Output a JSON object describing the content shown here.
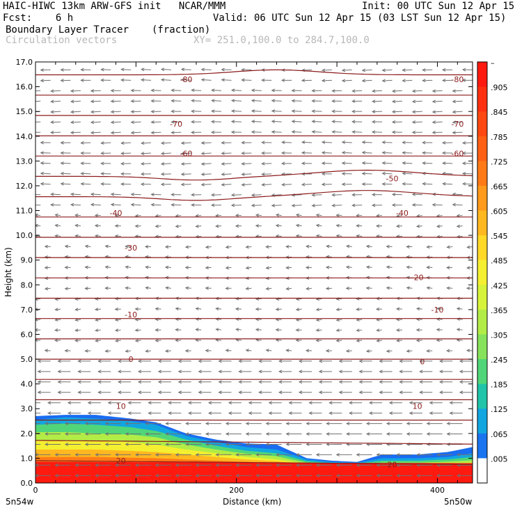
{
  "header": {
    "model_line": "HAIC-HIWC 13km ARW-GFS init   NCAR/MMM",
    "init": "Init: 00 UTC Sun 12 Apr 15",
    "fcst": "Fcst:    6 h",
    "valid": "Valid: 06 UTC Sun 12 Apr 15 (03 LST Sun 12 Apr 15)",
    "field": "Boundary Layer Tracer",
    "field_units": "(fraction)",
    "vectors": "Circulation vectors",
    "xsec": "XY= 251.0,100.0 to 284.7,100.0"
  },
  "axes": {
    "ylabel": "Height (km)",
    "xlabel": "Distance (km)",
    "x_start": "5n54w",
    "x_end": "5n50w"
  },
  "colors": {
    "contour": "#8b1a1a",
    "vector": "#707070"
  },
  "chart_data": {
    "type": "heatmap",
    "x_unit": "km",
    "y_unit": "km",
    "xlim": [
      0,
      435
    ],
    "ylim": [
      0,
      17
    ],
    "x_ticks": [
      "0",
      "200",
      "400"
    ],
    "x_tick_values": [
      0,
      200,
      400
    ],
    "y_ticks": [
      "0.0",
      "1.0",
      "2.0",
      "3.0",
      "4.0",
      "5.0",
      "6.0",
      "7.0",
      "8.0",
      "9.0",
      "10.0",
      "11.0",
      "12.0",
      "13.0",
      "14.0",
      "15.0",
      "16.0",
      "17.0"
    ],
    "colorbar": {
      "labels": [
        "–",
        ".905",
        ".845",
        ".785",
        ".725",
        ".665",
        ".605",
        ".545",
        ".485",
        ".425",
        ".365",
        ".305",
        ".245",
        ".185",
        ".125",
        ".065",
        ".005"
      ],
      "colors": [
        "#ff1a10",
        "#ff3010",
        "#ff4812",
        "#ff6014",
        "#ff7a16",
        "#ff9a1c",
        "#ffb820",
        "#ffd828",
        "#f4ef30",
        "#d6f23a",
        "#b2ec46",
        "#86e25a",
        "#50d678",
        "#20c4a8",
        "#12a6e0",
        "#1a74f0",
        "#ffffff"
      ]
    },
    "tracer_layers": [
      {
        "level": 0.005,
        "color": "#1a6cf0",
        "top": [
          [
            0,
            2.7
          ],
          [
            30,
            2.75
          ],
          [
            60,
            2.75
          ],
          [
            95,
            2.6
          ],
          [
            120,
            2.45
          ],
          [
            150,
            2.0
          ],
          [
            180,
            1.75
          ],
          [
            210,
            1.6
          ],
          [
            240,
            1.55
          ],
          [
            270,
            1.0
          ],
          [
            295,
            0.9
          ],
          [
            320,
            0.85
          ],
          [
            345,
            1.15
          ],
          [
            380,
            1.15
          ],
          [
            410,
            1.25
          ],
          [
            435,
            1.45
          ]
        ]
      },
      {
        "level": 0.125,
        "color": "#12a6e0",
        "top": [
          [
            0,
            2.55
          ],
          [
            30,
            2.65
          ],
          [
            60,
            2.6
          ],
          [
            95,
            2.5
          ],
          [
            120,
            2.35
          ],
          [
            150,
            1.9
          ],
          [
            180,
            1.65
          ],
          [
            210,
            1.45
          ],
          [
            240,
            1.35
          ],
          [
            270,
            0.95
          ],
          [
            295,
            0.85
          ],
          [
            320,
            0.82
          ],
          [
            345,
            1.0
          ],
          [
            380,
            1.0
          ],
          [
            410,
            1.05
          ],
          [
            435,
            1.2
          ]
        ]
      },
      {
        "level": 0.245,
        "color": "#50d678",
        "top": [
          [
            0,
            2.35
          ],
          [
            30,
            2.4
          ],
          [
            60,
            2.35
          ],
          [
            95,
            2.25
          ],
          [
            120,
            2.1
          ],
          [
            150,
            1.75
          ],
          [
            180,
            1.5
          ],
          [
            210,
            1.3
          ],
          [
            240,
            1.2
          ],
          [
            270,
            0.88
          ],
          [
            295,
            0.8
          ],
          [
            320,
            0.78
          ],
          [
            345,
            0.9
          ],
          [
            380,
            0.9
          ],
          [
            410,
            0.95
          ],
          [
            435,
            1.05
          ]
        ]
      },
      {
        "level": 0.365,
        "color": "#b2ec46",
        "top": [
          [
            0,
            2.05
          ],
          [
            30,
            2.05
          ],
          [
            60,
            2.0
          ],
          [
            95,
            1.95
          ],
          [
            120,
            1.85
          ],
          [
            150,
            1.55
          ],
          [
            180,
            1.35
          ],
          [
            210,
            1.18
          ],
          [
            240,
            1.08
          ],
          [
            270,
            0.82
          ],
          [
            295,
            0.76
          ],
          [
            320,
            0.74
          ],
          [
            345,
            0.82
          ],
          [
            380,
            0.82
          ],
          [
            410,
            0.86
          ],
          [
            435,
            0.92
          ]
        ]
      },
      {
        "level": 0.485,
        "color": "#f4ef30",
        "top": [
          [
            0,
            1.7
          ],
          [
            30,
            1.7
          ],
          [
            60,
            1.7
          ],
          [
            95,
            1.65
          ],
          [
            120,
            1.55
          ],
          [
            150,
            1.35
          ],
          [
            180,
            1.2
          ],
          [
            210,
            1.05
          ],
          [
            240,
            0.95
          ],
          [
            270,
            0.78
          ],
          [
            295,
            0.72
          ],
          [
            320,
            0.7
          ],
          [
            345,
            0.76
          ],
          [
            380,
            0.76
          ],
          [
            410,
            0.78
          ],
          [
            435,
            0.82
          ]
        ]
      },
      {
        "level": 0.605,
        "color": "#ffb820",
        "top": [
          [
            0,
            1.35
          ],
          [
            30,
            1.35
          ],
          [
            60,
            1.35
          ],
          [
            95,
            1.3
          ],
          [
            120,
            1.25
          ],
          [
            150,
            1.15
          ],
          [
            180,
            1.05
          ],
          [
            210,
            0.95
          ],
          [
            240,
            0.88
          ],
          [
            270,
            0.74
          ],
          [
            295,
            0.7
          ],
          [
            320,
            0.68
          ],
          [
            345,
            0.72
          ],
          [
            380,
            0.72
          ],
          [
            410,
            0.74
          ],
          [
            435,
            0.76
          ]
        ]
      },
      {
        "level": 0.725,
        "color": "#ff7a16",
        "top": [
          [
            0,
            1.05
          ],
          [
            30,
            1.05
          ],
          [
            60,
            1.05
          ],
          [
            95,
            1.02
          ],
          [
            120,
            1.0
          ],
          [
            150,
            0.95
          ],
          [
            180,
            0.9
          ],
          [
            210,
            0.85
          ],
          [
            240,
            0.8
          ],
          [
            270,
            0.72
          ],
          [
            295,
            0.68
          ],
          [
            320,
            0.66
          ],
          [
            345,
            0.7
          ],
          [
            380,
            0.7
          ],
          [
            410,
            0.72
          ],
          [
            435,
            0.74
          ]
        ]
      },
      {
        "level": 0.905,
        "color": "#ff1a10",
        "top": [
          [
            0,
            0.85
          ],
          [
            435,
            0.8
          ]
        ]
      }
    ],
    "isotherm_labels": [
      {
        "label": "-80",
        "x": 150,
        "y": 16.3
      },
      {
        "label": "-80",
        "x": 420,
        "y": 16.3
      },
      {
        "label": "-70",
        "x": 140,
        "y": 14.5
      },
      {
        "label": "-70",
        "x": 420,
        "y": 14.5
      },
      {
        "label": "-60",
        "x": 150,
        "y": 13.3
      },
      {
        "label": "-60",
        "x": 420,
        "y": 13.3
      },
      {
        "label": "-50",
        "x": 355,
        "y": 12.3
      },
      {
        "label": "-40",
        "x": 80,
        "y": 10.9
      },
      {
        "label": "-40",
        "x": 365,
        "y": 10.9
      },
      {
        "label": "-30",
        "x": 95,
        "y": 9.5
      },
      {
        "label": "-20",
        "x": 380,
        "y": 8.3
      },
      {
        "label": "-10",
        "x": 95,
        "y": 6.8
      },
      {
        "label": "-10",
        "x": 400,
        "y": 7.0
      },
      {
        "label": "0",
        "x": 95,
        "y": 5.0
      },
      {
        "label": "0",
        "x": 385,
        "y": 4.9
      },
      {
        "label": "10",
        "x": 85,
        "y": 3.1
      },
      {
        "label": "10",
        "x": 380,
        "y": 3.1
      },
      {
        "label": "20",
        "x": 85,
        "y": 0.9
      },
      {
        "label": "20",
        "x": 355,
        "y": 0.75
      }
    ]
  }
}
